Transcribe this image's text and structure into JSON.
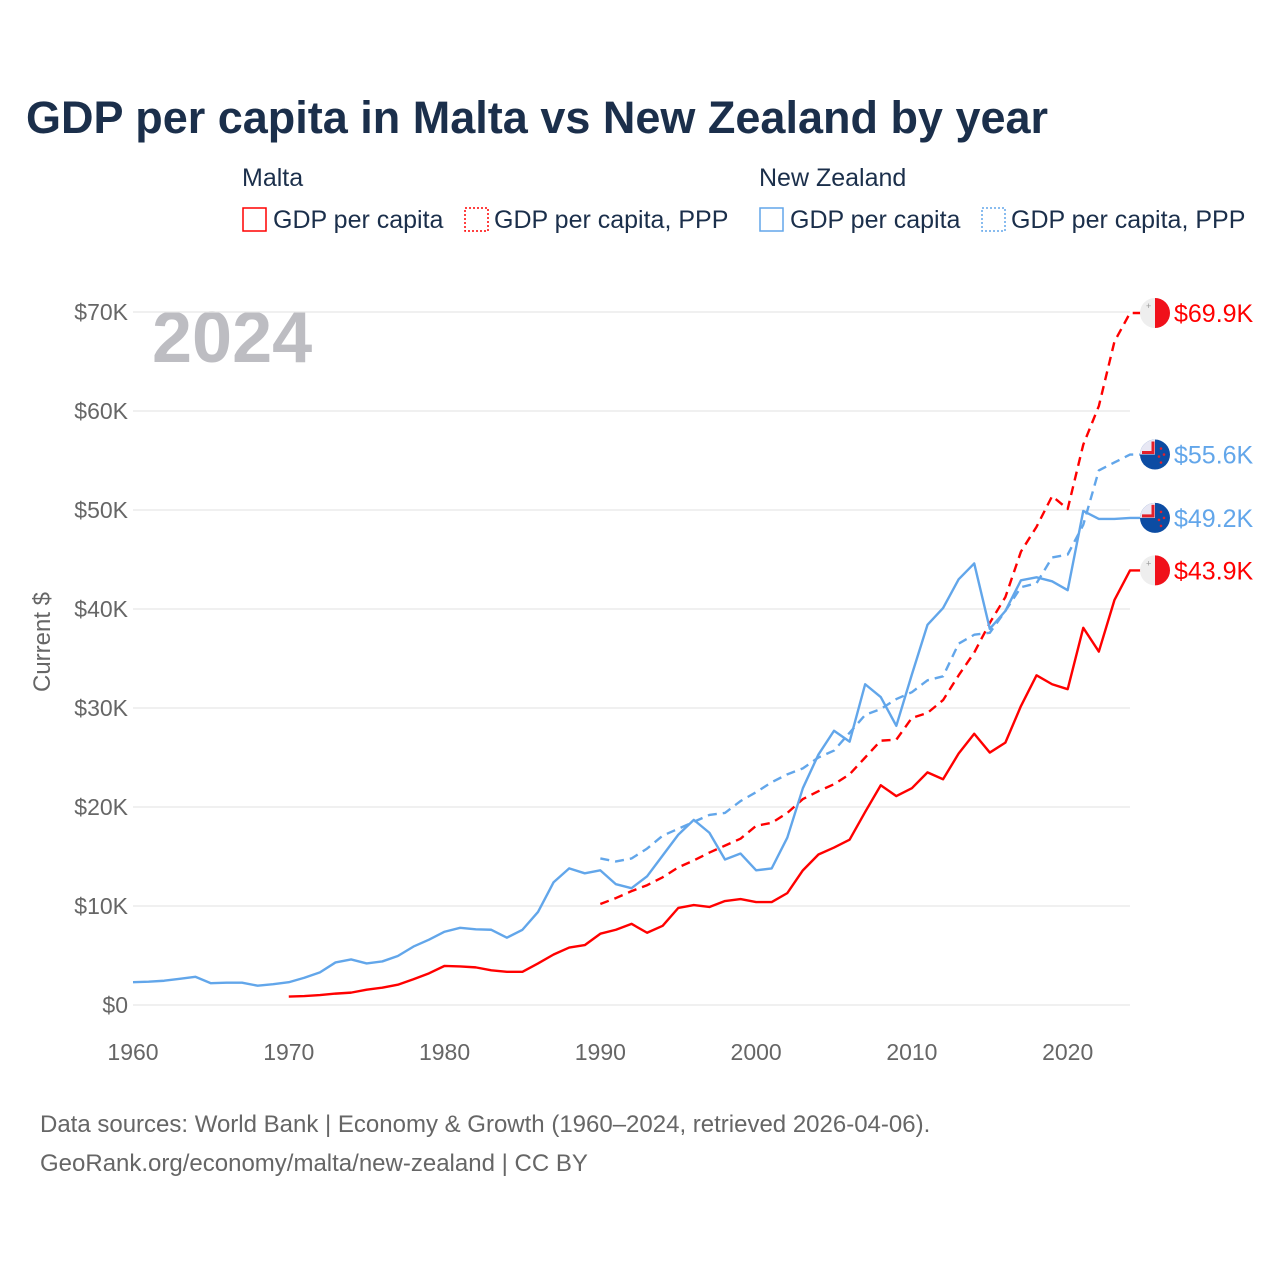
{
  "chart_data": {
    "type": "line",
    "title": "GDP per capita in Malta vs New Zealand by year",
    "ylabel": "Current $",
    "xlabel": "",
    "year_watermark": "2024",
    "xlim": [
      1960,
      2024
    ],
    "ylim": [
      0,
      70000
    ],
    "x_ticks": [
      1960,
      1970,
      1980,
      1990,
      2000,
      2010,
      2020
    ],
    "x_tick_labels": [
      "1960",
      "1970",
      "1980",
      "1990",
      "2000",
      "2010",
      "2020"
    ],
    "y_ticks": [
      0,
      10000,
      20000,
      30000,
      40000,
      50000,
      60000,
      70000
    ],
    "y_tick_labels": [
      "$0",
      "$10K",
      "$20K",
      "$30K",
      "$40K",
      "$50K",
      "$60K",
      "$70K"
    ],
    "grid": true,
    "legend": {
      "placement": "top",
      "groups": [
        {
          "title": "Malta",
          "entries": [
            "GDP per capita",
            "GDP per capita, PPP"
          ]
        },
        {
          "title": "New Zealand",
          "entries": [
            "GDP per capita",
            "GDP per capita, PPP"
          ]
        }
      ]
    },
    "series": [
      {
        "name": "Malta GDP per capita",
        "country": "Malta",
        "color": "#ff0000",
        "dashed": false,
        "start_year": 1970,
        "end_label": "$43.9K",
        "values_k": [
          0.85,
          0.9,
          1.0,
          1.15,
          1.25,
          1.55,
          1.75,
          2.05,
          2.6,
          3.2,
          3.95,
          3.9,
          3.8,
          3.5,
          3.35,
          3.35,
          4.2,
          5.1,
          5.8,
          6.05,
          7.2,
          7.6,
          8.2,
          7.3,
          8.0,
          9.8,
          10.1,
          9.9,
          10.5,
          10.7,
          10.4,
          10.4,
          11.3,
          13.6,
          15.2,
          15.9,
          16.7,
          19.5,
          22.2,
          21.1,
          21.9,
          23.5,
          22.8,
          25.4,
          27.4,
          25.5,
          26.5,
          30.2,
          33.3,
          32.4,
          31.9,
          38.1,
          35.7,
          40.9,
          43.9
        ]
      },
      {
        "name": "Malta GDP per capita, PPP",
        "country": "Malta",
        "color": "#ff0000",
        "dashed": true,
        "start_year": 1990,
        "end_label": "$69.9K",
        "values_k": [
          10.2,
          10.8,
          11.5,
          12.1,
          12.9,
          13.9,
          14.6,
          15.4,
          16.1,
          16.8,
          18.1,
          18.4,
          19.4,
          20.8,
          21.6,
          22.3,
          23.3,
          25.0,
          26.7,
          26.8,
          29.0,
          29.5,
          30.8,
          33.3,
          35.6,
          38.6,
          41.2,
          45.8,
          48.3,
          51.4,
          50.1,
          56.6,
          60.5,
          67.0,
          69.9
        ]
      },
      {
        "name": "New Zealand GDP per capita",
        "country": "New Zealand",
        "color": "#62a6ea",
        "dashed": false,
        "start_year": 1960,
        "end_label": "$49.2K",
        "values_k": [
          2.3,
          2.35,
          2.45,
          2.65,
          2.85,
          2.2,
          2.25,
          2.25,
          1.95,
          2.1,
          2.3,
          2.75,
          3.3,
          4.3,
          4.6,
          4.2,
          4.4,
          4.95,
          5.9,
          6.6,
          7.4,
          7.8,
          7.65,
          7.6,
          6.8,
          7.6,
          9.4,
          12.4,
          13.8,
          13.3,
          13.6,
          12.2,
          11.8,
          13.0,
          15.1,
          17.2,
          18.7,
          17.4,
          14.7,
          15.3,
          13.6,
          13.8,
          16.9,
          21.9,
          25.3,
          27.7,
          26.6,
          32.4,
          31.1,
          28.2,
          33.4,
          38.4,
          40.1,
          43.0,
          44.6,
          38.0,
          39.8,
          42.9,
          43.2,
          42.8,
          41.9,
          49.9,
          49.1,
          49.1,
          49.2
        ]
      },
      {
        "name": "New Zealand GDP per capita, PPP",
        "country": "New Zealand",
        "color": "#62a6ea",
        "dashed": true,
        "start_year": 1990,
        "end_label": "$55.6K",
        "values_k": [
          14.8,
          14.5,
          14.8,
          15.8,
          17.1,
          17.8,
          18.5,
          19.2,
          19.4,
          20.6,
          21.5,
          22.5,
          23.3,
          23.9,
          25.0,
          25.7,
          27.5,
          29.3,
          29.9,
          30.9,
          31.6,
          32.8,
          33.2,
          36.5,
          37.4,
          37.6,
          39.8,
          42.2,
          42.6,
          45.2,
          45.5,
          48.5,
          54.0,
          54.8,
          55.6
        ]
      }
    ],
    "source_lines": [
      "Data sources: World Bank | Economy & Growth (1960–2024, retrieved 2026-04-06).",
      "GeoRank.org/economy/malta/new-zealand | CC BY"
    ]
  }
}
